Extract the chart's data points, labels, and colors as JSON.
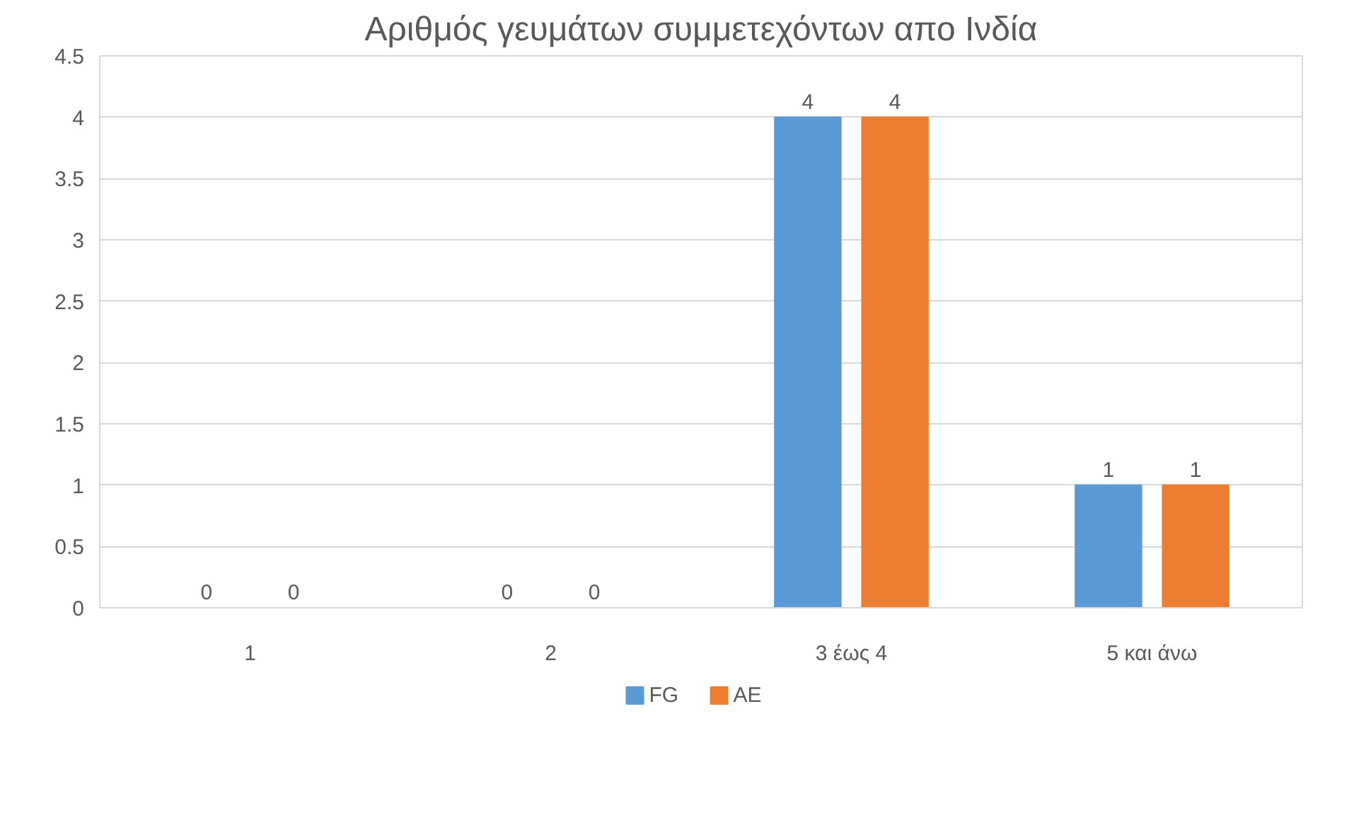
{
  "chart_data": {
    "type": "bar",
    "title": "Αριθμός γευμάτων συμμετεχόντων απο Ινδία",
    "categories": [
      "1",
      "2",
      "3 έως 4",
      "5 και άνω"
    ],
    "series": [
      {
        "name": "FG",
        "color": "#5b9bd5",
        "values": [
          0,
          0,
          4,
          1
        ]
      },
      {
        "name": "AE",
        "color": "#ed7d31",
        "values": [
          0,
          0,
          4,
          1
        ]
      }
    ],
    "ylim": [
      0,
      4.5
    ],
    "yticks": [
      0,
      0.5,
      1,
      1.5,
      2,
      2.5,
      3,
      3.5,
      4,
      4.5
    ],
    "grid": "y",
    "legend": "bottom",
    "data_labels": true
  }
}
